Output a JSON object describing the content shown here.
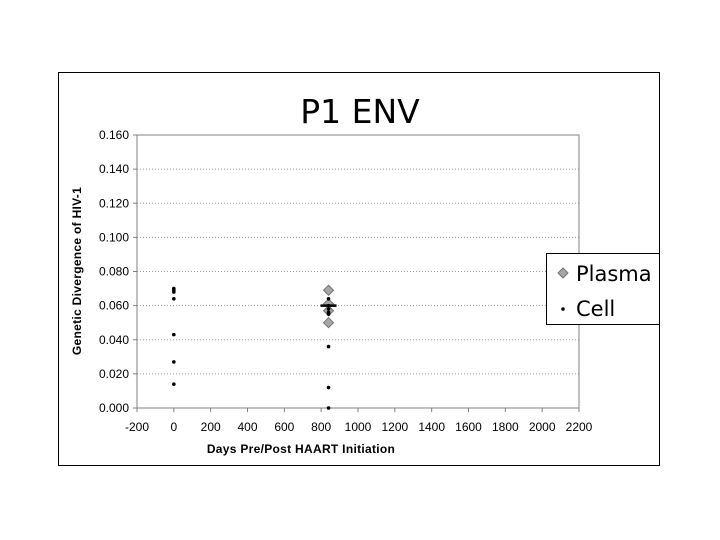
{
  "chart_data": {
    "type": "scatter",
    "title": "P1  ENV",
    "xlabel": "Days   Pre/Post   HAART   Initiation",
    "ylabel": "Genetic   Divergence   of   HIV-1",
    "xlim": [
      -200,
      2200
    ],
    "ylim": [
      0,
      0.16
    ],
    "x_ticks": [
      "-200",
      "0",
      "200",
      "400",
      "600",
      "800",
      "1000",
      "1200",
      "1400",
      "1600",
      "1800",
      "2000",
      "2200"
    ],
    "y_ticks": [
      "0.000",
      "0.020",
      "0.040",
      "0.060",
      "0.080",
      "0.100",
      "0.120",
      "0.140",
      "0.160"
    ],
    "grid": "horizontal dotted",
    "legend_position": "right",
    "series": [
      {
        "name": "Plasma",
        "marker": "diamond",
        "color": "#a6a6a6",
        "points": [
          [
            840,
            0.069
          ],
          [
            840,
            0.061
          ],
          [
            840,
            0.057
          ],
          [
            840,
            0.05
          ]
        ]
      },
      {
        "name": "Cell",
        "marker": "dot",
        "color": "#000000",
        "points": [
          [
            0,
            0.07
          ],
          [
            0,
            0.069
          ],
          [
            0,
            0.068
          ],
          [
            0,
            0.064
          ],
          [
            0,
            0.043
          ],
          [
            0,
            0.027
          ],
          [
            0,
            0.014
          ],
          [
            840,
            0.064
          ],
          [
            840,
            0.06
          ],
          [
            840,
            0.058
          ],
          [
            840,
            0.056
          ],
          [
            840,
            0.055
          ],
          [
            840,
            0.036
          ],
          [
            840,
            0.012
          ],
          [
            840,
            0.0
          ]
        ]
      }
    ],
    "markers": [
      {
        "label": "mean",
        "x": 840,
        "y": 0.06
      }
    ]
  }
}
